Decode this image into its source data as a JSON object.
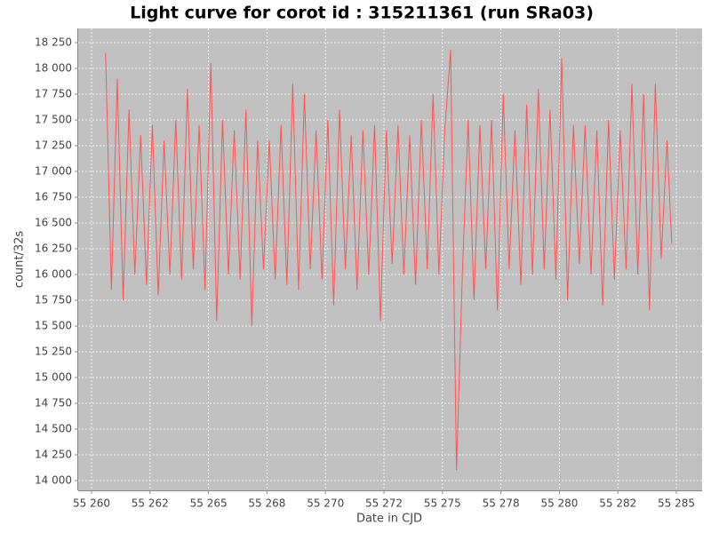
{
  "chart_data": {
    "type": "line",
    "title": "Light curve for corot id : 315211361 (run SRa03)",
    "x_label": "Date in CJD",
    "y_label": "count/32s",
    "xlim": [
      55259.43,
      55286.1
    ],
    "ylim": [
      13905,
      18388
    ],
    "xticks": [
      {
        "value": 55260,
        "label": "55 260"
      },
      {
        "value": 55262.5,
        "label": "55 262"
      },
      {
        "value": 55265,
        "label": "55 265"
      },
      {
        "value": 55267.5,
        "label": "55 268"
      },
      {
        "value": 55270,
        "label": "55 270"
      },
      {
        "value": 55272.5,
        "label": "55 272"
      },
      {
        "value": 55275,
        "label": "55 275"
      },
      {
        "value": 55277.5,
        "label": "55 278"
      },
      {
        "value": 55280,
        "label": "55 280"
      },
      {
        "value": 55282.5,
        "label": "55 282"
      },
      {
        "value": 55285,
        "label": "55 285"
      }
    ],
    "yticks": [
      {
        "value": 14000,
        "label": "14 000"
      },
      {
        "value": 14250,
        "label": "14 250"
      },
      {
        "value": 14500,
        "label": "14 500"
      },
      {
        "value": 14750,
        "label": "14 750"
      },
      {
        "value": 15000,
        "label": "15 000"
      },
      {
        "value": 15250,
        "label": "15 250"
      },
      {
        "value": 15500,
        "label": "15 500"
      },
      {
        "value": 15750,
        "label": "15 750"
      },
      {
        "value": 16000,
        "label": "16 000"
      },
      {
        "value": 16250,
        "label": "16 250"
      },
      {
        "value": 16500,
        "label": "16 500"
      },
      {
        "value": 16750,
        "label": "16 750"
      },
      {
        "value": 17000,
        "label": "17 000"
      },
      {
        "value": 17250,
        "label": "17 250"
      },
      {
        "value": 17500,
        "label": "17 500"
      },
      {
        "value": 17750,
        "label": "17 750"
      },
      {
        "value": 18000,
        "label": "18 000"
      },
      {
        "value": 18250,
        "label": "18 250"
      }
    ],
    "grid": true,
    "series": [
      {
        "color": "#ff5555",
        "x": [
          55260.6,
          55260.85,
          55261.1,
          55261.35,
          55261.6,
          55261.85,
          55262.1,
          55262.35,
          55262.6,
          55262.85,
          55263.1,
          55263.35,
          55263.6,
          55263.85,
          55264.1,
          55264.35,
          55264.6,
          55264.85,
          55265.1,
          55265.35,
          55265.6,
          55265.85,
          55266.1,
          55266.35,
          55266.6,
          55266.85,
          55267.1,
          55267.35,
          55267.6,
          55267.85,
          55268.1,
          55268.35,
          55268.6,
          55268.85,
          55269.1,
          55269.35,
          55269.6,
          55269.85,
          55270.1,
          55270.35,
          55270.6,
          55270.85,
          55271.1,
          55271.35,
          55271.6,
          55271.85,
          55272.1,
          55272.35,
          55272.6,
          55272.85,
          55273.1,
          55273.35,
          55273.6,
          55273.85,
          55274.1,
          55274.35,
          55274.6,
          55274.85,
          55275.1,
          55275.35,
          55275.6,
          55275.85,
          55276.1,
          55276.35,
          55276.6,
          55276.85,
          55277.1,
          55277.35,
          55277.6,
          55277.85,
          55278.1,
          55278.35,
          55278.6,
          55278.85,
          55279.1,
          55279.35,
          55279.6,
          55279.85,
          55280.1,
          55280.35,
          55280.6,
          55280.85,
          55281.1,
          55281.35,
          55281.6,
          55281.85,
          55282.1,
          55282.35,
          55282.6,
          55282.85,
          55283.1,
          55283.35,
          55283.6,
          55283.85,
          55284.1,
          55284.35,
          55284.6,
          55284.8
        ],
        "values": [
          18150,
          15850,
          17900,
          15750,
          17600,
          16000,
          17350,
          15900,
          17450,
          15800,
          17300,
          16000,
          17500,
          15950,
          17800,
          16050,
          17450,
          15850,
          18050,
          15550,
          17500,
          16000,
          17400,
          15950,
          17600,
          15500,
          17300,
          16050,
          17300,
          15950,
          17450,
          15900,
          17850,
          15850,
          17750,
          16050,
          17400,
          15950,
          17500,
          15700,
          17600,
          16050,
          17350,
          15850,
          17400,
          16000,
          17450,
          15550,
          17400,
          16100,
          17450,
          16000,
          17350,
          15900,
          17500,
          16050,
          17750,
          16000,
          17400,
          18180,
          14100,
          16000,
          17500,
          15750,
          17450,
          16050,
          17500,
          15650,
          17750,
          16050,
          17400,
          15900,
          17650,
          16000,
          17800,
          16050,
          17600,
          15950,
          18100,
          15750,
          17450,
          16100,
          17450,
          16000,
          17400,
          15700,
          17500,
          15950,
          17400,
          16050,
          17850,
          16000,
          17750,
          15650,
          17850,
          16150,
          17300,
          16300
        ]
      }
    ]
  }
}
